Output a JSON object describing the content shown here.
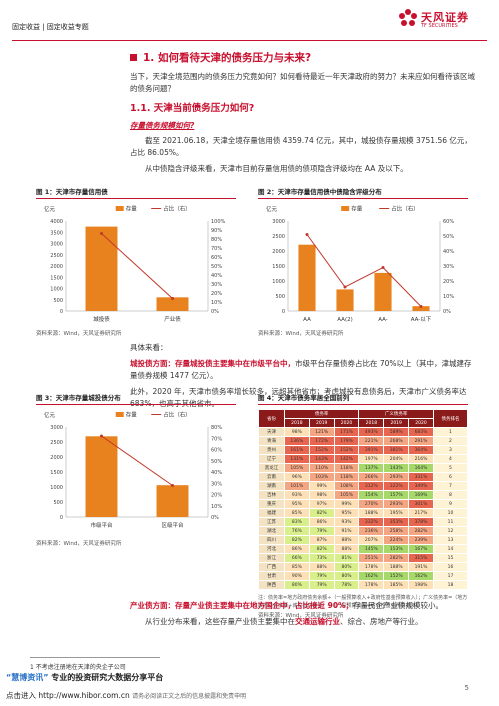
{
  "header": {
    "left": "固定收益 | 固定收益专题",
    "brand_cn": "天风证券",
    "brand_en": "TF SECURITIES"
  },
  "section1": {
    "title": "1. 如何看待天津的债务压力与未来?",
    "intro": "当下，天津全境范围内的债务压力究竟如何？如何看待最近一年天津政府的努力？未来应如何看待该区域的债务问题？"
  },
  "section11": {
    "title": "1.1. 天津当前债务压力如何?",
    "sub": "存量债务规模如何?",
    "p1": "截至 2021.06.18，天津全境存量信用债 4359.74 亿元，其中，城投债存量规模 3751.56 亿元，占比 86.05%。",
    "p2": "从中债隐含评级来看，天津市目前存量信用债的债项隐含评级均在 AA 及以下。"
  },
  "fig1": {
    "title": "图 1：天津市存量信用债",
    "unit": "亿元",
    "legend_bar": "存量",
    "legend_line": "占比（右）",
    "source": "资料来源：Wind，天风证券研究所"
  },
  "fig2": {
    "title": "图 2：天津市存量信用债中债隐含评级分布",
    "unit": "亿元",
    "legend_bar": "存量",
    "legend_line": "占比（右）",
    "source": "资料来源：Wind，天风证券研究所"
  },
  "chart_data": [
    {
      "type": "bar",
      "categories": [
        "城投债",
        "产业债"
      ],
      "series": [
        {
          "name": "存量",
          "values": [
            3751.56,
            608.18
          ]
        },
        {
          "name": "占比（右）",
          "values": [
            86.05,
            13.95
          ]
        }
      ],
      "yticks": [
        "0",
        "500",
        "1000",
        "1500",
        "2000",
        "2500",
        "3000",
        "3500",
        "4000"
      ],
      "y2ticks": [
        "0%",
        "10%",
        "20%",
        "30%",
        "40%",
        "50%",
        "60%",
        "70%",
        "80%",
        "90%",
        "100%"
      ],
      "ylim": [
        0,
        4000
      ],
      "y2lim": [
        0,
        100
      ]
    },
    {
      "type": "bar",
      "categories": [
        "AA",
        "AA(2)",
        "AA-",
        "AA-以下"
      ],
      "series": [
        {
          "name": "存量",
          "values": [
            2210,
            720,
            1270,
            160
          ]
        },
        {
          "name": "占比（右）",
          "values": [
            51,
            16,
            29,
            3
          ]
        }
      ],
      "yticks": [
        "0",
        "500",
        "1000",
        "1500",
        "2000",
        "2500",
        "3000"
      ],
      "y2ticks": [
        "0%",
        "10%",
        "20%",
        "30%",
        "40%",
        "50%",
        "60%"
      ],
      "ylim": [
        0,
        3000
      ],
      "y2lim": [
        0,
        60
      ]
    },
    {
      "type": "bar",
      "categories": [
        "市级平台",
        "区级平台"
      ],
      "series": [
        {
          "name": "存量",
          "values": [
            2690,
            1060
          ]
        },
        {
          "name": "占比（右）",
          "values": [
            72,
            28
          ]
        }
      ],
      "yticks": [
        "0",
        "500",
        "1000",
        "1500",
        "2000",
        "2500",
        "3000"
      ],
      "y2ticks": [
        "0%",
        "10%",
        "20%",
        "30%",
        "40%",
        "50%",
        "60%",
        "70%",
        "80%"
      ],
      "ylim": [
        0,
        3000
      ],
      "y2lim": [
        0,
        80
      ]
    }
  ],
  "body": {
    "lead": "具体来看：",
    "p_city_a": "城投债方面：存量城投债主要集中在市级平台中，",
    "p_city_b": "市级平台存量债券占比在 70%以上（其中，津城建存量债券规模 1477 亿元）。",
    "p_year": "此外，2020 年，天津市债务率增长较多，远超其他省市；考虑城投有息债务后，天津市广义债务率达 683%，也高于其他省市。",
    "p_ind_a": "产业债方面：存量产业债主要集中在地方国企中，占比接近 90%；",
    "p_ind_b": "存量民企产业债规模较小。",
    "p_ind2_a": "从行业分布来看，这些存量产业债主要集中在",
    "p_ind2_b": "交通运输行业",
    "p_ind2_c": "、综合、房地产等行业。"
  },
  "fig3": {
    "title": "图 3：天津市存量城投债分布",
    "unit": "亿元",
    "legend_bar": "存量",
    "legend_line": "占比（右）",
    "source": "资料来源：Wind，天风证券研究所"
  },
  "fig4": {
    "title": "图 4：天津市债务率居全国前列",
    "h_region": "省份",
    "h_narrow": "债务率",
    "h_broad": "广义债务率",
    "h_rank": "债务排名",
    "years": [
      "2018",
      "2019",
      "2020",
      "2018",
      "2019",
      "2020"
    ],
    "rows": [
      [
        "天津",
        "98%",
        "121%",
        "171%",
        "493%",
        "589%",
        "683%",
        "1"
      ],
      [
        "青海",
        "136%",
        "172%",
        "179%",
        "221%",
        "268%",
        "291%",
        "2"
      ],
      [
        "贵州",
        "161%",
        "152%",
        "152%",
        "391%",
        "381%",
        "364%",
        "3"
      ],
      [
        "辽宁",
        "131%",
        "143%",
        "142%",
        "197%",
        "204%",
        "216%",
        "4"
      ],
      [
        "黑龙江",
        "105%",
        "110%",
        "118%",
        "137%",
        "143%",
        "164%",
        "5"
      ],
      [
        "云南",
        "96%",
        "103%",
        "118%",
        "266%",
        "293%",
        "331%",
        "6"
      ],
      [
        "湖南",
        "101%",
        "99%",
        "108%",
        "312%",
        "322%",
        "349%",
        "7"
      ],
      [
        "吉林",
        "93%",
        "98%",
        "105%",
        "154%",
        "157%",
        "169%",
        "8"
      ],
      [
        "重庆",
        "95%",
        "97%",
        "99%",
        "270%",
        "293%",
        "301%",
        "9"
      ],
      [
        "福建",
        "85%",
        "82%",
        "95%",
        "188%",
        "195%",
        "217%",
        "10"
      ],
      [
        "江苏",
        "83%",
        "86%",
        "93%",
        "332%",
        "353%",
        "378%",
        "11"
      ],
      [
        "湖北",
        "76%",
        "79%",
        "91%",
        "236%",
        "258%",
        "282%",
        "12"
      ],
      [
        "四川",
        "82%",
        "87%",
        "88%",
        "207%",
        "224%",
        "239%",
        "13"
      ],
      [
        "河北",
        "86%",
        "82%",
        "88%",
        "145%",
        "153%",
        "167%",
        "14"
      ],
      [
        "浙江",
        "66%",
        "73%",
        "81%",
        "251%",
        "282%",
        "315%",
        "15"
      ],
      [
        "广西",
        "85%",
        "88%",
        "80%",
        "178%",
        "188%",
        "191%",
        "16"
      ],
      [
        "甘肃",
        "90%",
        "79%",
        "80%",
        "162%",
        "152%",
        "162%",
        "17"
      ],
      [
        "陕西",
        "80%",
        "79%",
        "78%",
        "178%",
        "185%",
        "198%",
        "18"
      ]
    ],
    "note": "注：债务率=地方政府债务余额÷（一般预算收入+政府性基金预算收入）；广义债务率=（地方政府债务余额+城投有息债务）÷（一般预算收入+省市性基金预算收入）",
    "source": "资料来源：Wind，天风证券研究所"
  },
  "footer": {
    "footnote": "1 不考虑注册地在天津的央企子公司",
    "promo_a": "“慧博资讯”",
    "promo_b": " 专业的投资研究大数据分享平台",
    "promo2": "点击进入 http://www.hibor.com.cn",
    "promo2_tail": "请务必阅读正文之后的信息披露和免责申明",
    "page": "5"
  },
  "colors": {
    "brand_red": "#c8102e",
    "bar_orange": "#e8821e",
    "line_red": "#c0392b"
  }
}
